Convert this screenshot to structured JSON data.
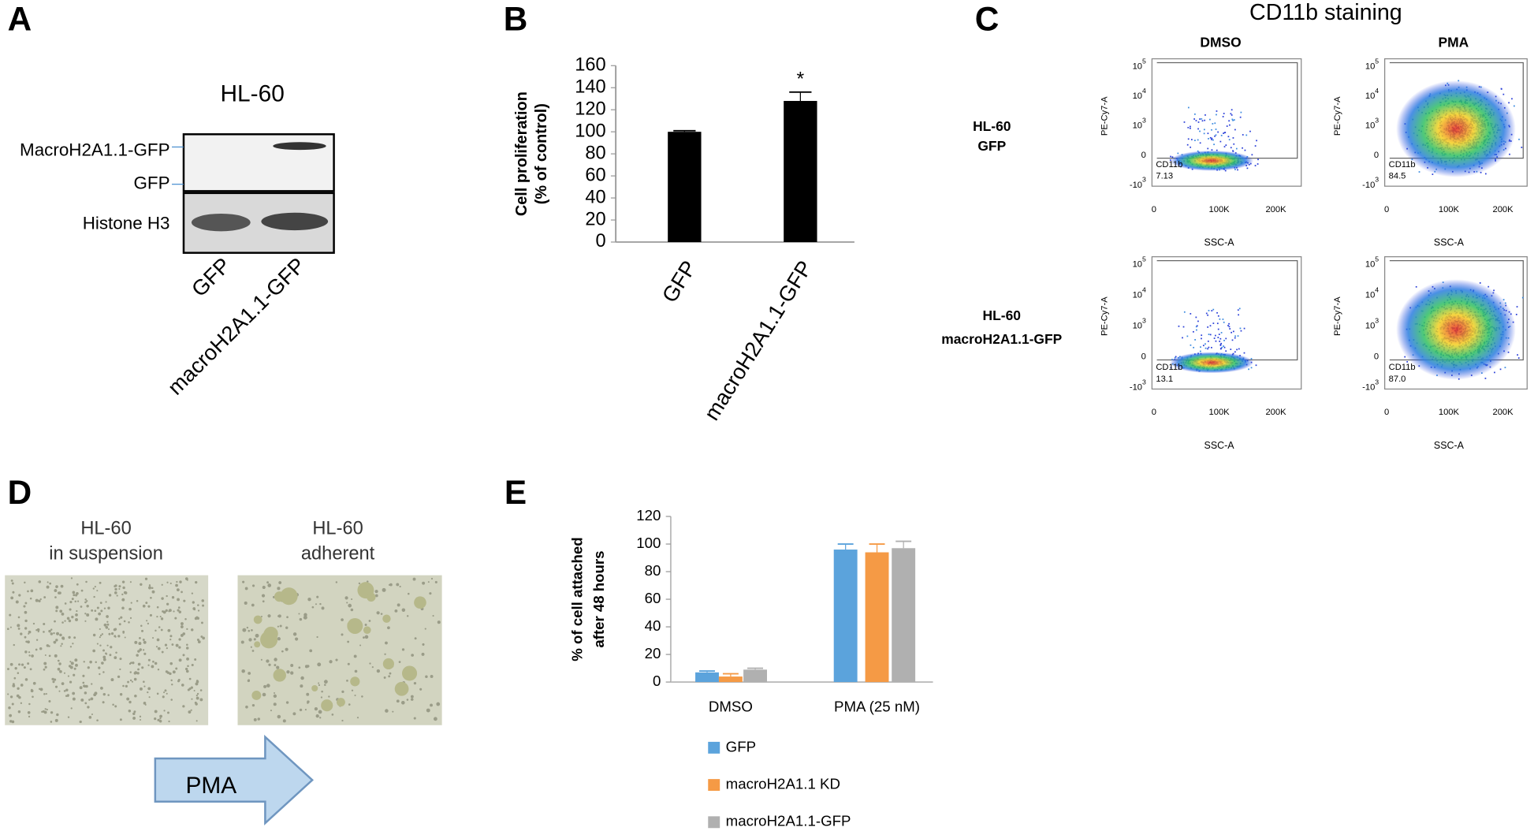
{
  "panel_labels": [
    "A",
    "B",
    "C",
    "D",
    "E"
  ],
  "blot": {
    "title": "HL-60",
    "bands": [
      "MacroH2A1.1-GFP",
      "GFP"
    ],
    "loading": "Histone H3",
    "lanes": [
      "GFP",
      "macroH2A1.1-GFP"
    ]
  },
  "chart_data": [
    {
      "type": "bar",
      "ylabel": [
        "Cell proliferation",
        "(% of control)"
      ],
      "categories": [
        "GFP",
        "macroH2A1.1-GFP"
      ],
      "values": [
        100,
        128
      ],
      "errors": [
        1,
        8
      ],
      "annotations": [
        null,
        "*"
      ],
      "color": "#000000",
      "ylim": [
        0,
        160
      ],
      "yticks": [
        0,
        20,
        40,
        60,
        80,
        100,
        120,
        140,
        160
      ]
    },
    {
      "type": "bar",
      "ylabel": [
        "% of cell attached",
        "after 48 hours"
      ],
      "categories": [
        "DMSO",
        "PMA (25 nM)"
      ],
      "series": [
        {
          "name": "GFP",
          "color": "#5ba3dc",
          "values": [
            7,
            96
          ],
          "errors": [
            1,
            4
          ]
        },
        {
          "name": "macroH2A1.1 KD",
          "color": "#f59a45",
          "values": [
            4,
            94
          ],
          "errors": [
            2,
            6
          ]
        },
        {
          "name": "macroH2A1.1-GFP",
          "color": "#b0b0b0",
          "values": [
            9,
            97
          ],
          "errors": [
            1,
            5
          ]
        }
      ],
      "ylim": [
        0,
        120
      ],
      "yticks": [
        0,
        20,
        40,
        60,
        80,
        100,
        120
      ],
      "legend": "bottom"
    }
  ],
  "flow": {
    "title": "CD11b staining",
    "columns": [
      "DMSO",
      "PMA"
    ],
    "rows": [
      [
        "HL-60",
        "GFP"
      ],
      [
        "HL-60",
        "macroH2A1.1-GFP"
      ]
    ],
    "gate": "CD11b",
    "percentages": [
      [
        "7.13",
        "84.5"
      ],
      [
        "13.1",
        "87.0"
      ]
    ],
    "x_axis": "SSC-A",
    "y_axis": "PE-Cy7-A",
    "xticks": [
      "0",
      "100K",
      "200K"
    ],
    "yticks": [
      {
        "base": "10",
        "exp": "5"
      },
      {
        "base": "10",
        "exp": "4"
      },
      {
        "base": "10",
        "exp": "3"
      },
      "0",
      {
        "base": "-10",
        "exp": "3"
      }
    ]
  },
  "micrographs": {
    "captions": [
      [
        "HL-60",
        "in suspension"
      ],
      [
        "HL-60",
        "adherent"
      ]
    ],
    "treatment": "PMA"
  }
}
